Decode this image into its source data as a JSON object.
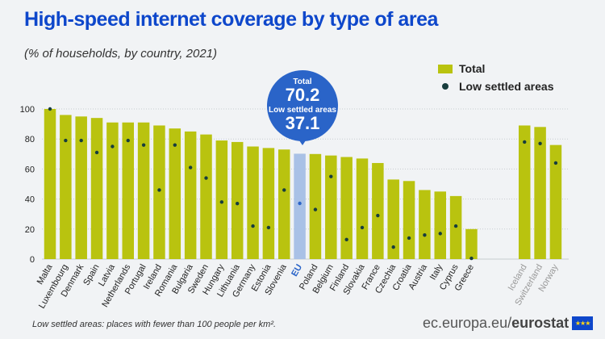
{
  "title": "High-speed internet coverage by type of area",
  "subtitle": "(% of households, by country, 2021)",
  "legend": {
    "total": "Total",
    "low": "Low settled areas"
  },
  "tooltip": {
    "total_label": "Total",
    "total_value": "70.2",
    "low_label": "Low settled areas",
    "low_value": "37.1"
  },
  "footnote": "Low settled areas: places with fewer than 100 people per km².",
  "brand": {
    "domain": "ec.europa.eu/",
    "name": "eurostat"
  },
  "colors": {
    "total": "#b9c30f",
    "low": "#173d3d",
    "eu_bar": "#a9c1e6",
    "eu_label": "#2a64c8",
    "efta_label": "#999999",
    "title": "#0e47cb"
  },
  "chart_data": {
    "type": "bar",
    "categories": [
      "Malta",
      "Luxembourg",
      "Denmark",
      "Spain",
      "Latvia",
      "Netherlands",
      "Portugal",
      "Ireland",
      "Romania",
      "Bulgaria",
      "Sweden",
      "Hungary",
      "Lithuania",
      "Germany",
      "Estonia",
      "Slovenia",
      "EU",
      "Poland",
      "Belgium",
      "Finland",
      "Slovakia",
      "France",
      "Czechia",
      "Croatia",
      "Austria",
      "Italy",
      "Cyprus",
      "Greece",
      "Iceland",
      "Switzerland",
      "Norway"
    ],
    "series": [
      {
        "name": "Total",
        "values": [
          100,
          96,
          95,
          94,
          91,
          91,
          91,
          89,
          87,
          85,
          83,
          79,
          78,
          75,
          74,
          73,
          70.2,
          70,
          69,
          68,
          67,
          64,
          53,
          52,
          46,
          45,
          42,
          20,
          89,
          88,
          76
        ]
      },
      {
        "name": "Low settled areas",
        "values": [
          100,
          79,
          79,
          71,
          75,
          79,
          76,
          46,
          76,
          61,
          54,
          38,
          37,
          22,
          21,
          46,
          37.1,
          33,
          55,
          13,
          21,
          29,
          8,
          14,
          16,
          17,
          22,
          0.5,
          78,
          77,
          64
        ]
      }
    ],
    "highlight": "EU",
    "secondary_group": [
      "Iceland",
      "Switzerland",
      "Norway"
    ],
    "yticks": [
      0,
      20,
      40,
      60,
      80,
      100
    ],
    "ylim": [
      0,
      100
    ],
    "grid": true,
    "legend_position": "top-right"
  }
}
